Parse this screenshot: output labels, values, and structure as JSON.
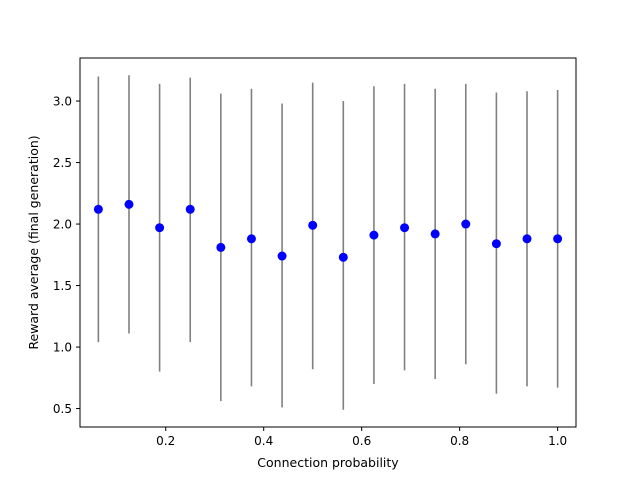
{
  "chart_data": {
    "type": "scatter",
    "title": "",
    "xlabel": "Connection probability",
    "ylabel": "Reward average (final generation)",
    "xlim": [
      0.025,
      1.0375
    ],
    "ylim": [
      0.35,
      3.35
    ],
    "x_ticks": [
      0.2,
      0.4,
      0.6,
      0.8,
      1.0
    ],
    "x_tick_labels": [
      "0.2",
      "0.4",
      "0.6",
      "0.8",
      "1.0"
    ],
    "y_ticks": [
      0.5,
      1.0,
      1.5,
      2.0,
      2.5,
      3.0
    ],
    "y_tick_labels": [
      "0.5",
      "1.0",
      "1.5",
      "2.0",
      "2.5",
      "3.0"
    ],
    "grid": false,
    "legend": false,
    "point_color": "#0000ff",
    "errorbar_color": "#808080",
    "series": [
      {
        "x": [
          0.0625,
          0.125,
          0.1875,
          0.25,
          0.3125,
          0.375,
          0.4375,
          0.5,
          0.5625,
          0.625,
          0.6875,
          0.75,
          0.8125,
          0.875,
          0.9375,
          1.0
        ],
        "y": [
          2.12,
          2.16,
          1.97,
          2.12,
          1.81,
          1.88,
          1.74,
          1.99,
          1.73,
          1.91,
          1.97,
          1.92,
          2.0,
          1.84,
          1.88,
          1.88
        ],
        "y_low": [
          1.04,
          1.11,
          0.8,
          1.04,
          0.56,
          0.68,
          0.51,
          0.82,
          0.49,
          0.7,
          0.81,
          0.74,
          0.86,
          0.62,
          0.68,
          0.67
        ],
        "y_high": [
          3.2,
          3.21,
          3.14,
          3.19,
          3.06,
          3.1,
          2.98,
          3.15,
          3.0,
          3.12,
          3.14,
          3.1,
          3.14,
          3.07,
          3.08,
          3.09
        ]
      }
    ]
  }
}
